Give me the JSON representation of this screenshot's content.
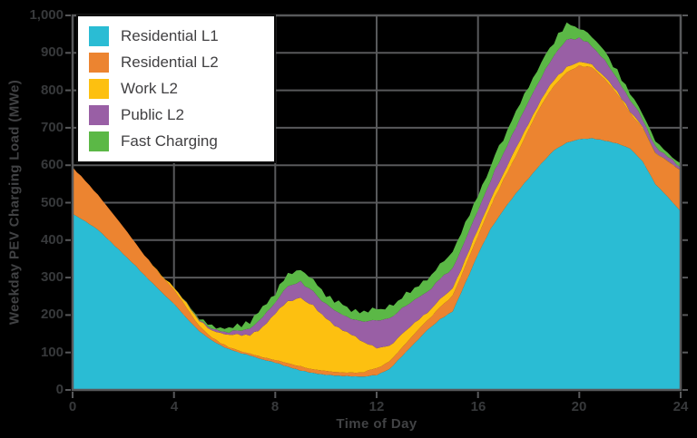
{
  "axes": {
    "y_label": "Weekday PEV Charging Load (MWe)",
    "x_label": "Time of Day",
    "y_tick_labels": [
      "0",
      "100",
      "200",
      "300",
      "400",
      "500",
      "600",
      "700",
      "800",
      "900",
      "1,000"
    ],
    "x_tick_labels": [
      "0",
      "4",
      "8",
      "12",
      "16",
      "20",
      "24"
    ],
    "x_tick_values": [
      0,
      4,
      8,
      12,
      16,
      20,
      24
    ]
  },
  "colors": {
    "background": "#000000",
    "grid": "#58595B",
    "tick_text": "#37393B",
    "axis_title_text": "#414244",
    "legend_background": "#FFFFFF",
    "legend_border": "#0A0A0A",
    "legend_text": "#414042"
  },
  "chart_data": {
    "type": "area",
    "stacked": true,
    "title": "",
    "xlabel": "Time of Day",
    "ylabel": "Weekday PEV Charging Load (MWe)",
    "xlim": [
      0,
      24
    ],
    "ylim": [
      0,
      1000
    ],
    "grid": true,
    "legend_position": "top-left",
    "x_hours_step": 0.5,
    "x_start_hour": 0,
    "series": [
      {
        "name": "Residential L1",
        "color": "#2ABCD4",
        "jitter": 1,
        "values": [
          470,
          450,
          428,
          396,
          363,
          330,
          295,
          262,
          230,
          192,
          157,
          132,
          114,
          101,
          92,
          81,
          73,
          62,
          52,
          45,
          40,
          38,
          36,
          36,
          40,
          55,
          90,
          125,
          160,
          188,
          210,
          285,
          363,
          430,
          480,
          525,
          565,
          605,
          640,
          660,
          670,
          672,
          666,
          658,
          645,
          610,
          550,
          515,
          477
        ]
      },
      {
        "name": "Residential L2",
        "color": "#EC8430",
        "jitter": 2,
        "values": [
          125,
          108,
          92,
          82,
          73,
          60,
          51,
          43,
          38,
          28,
          14,
          8,
          6,
          5,
          5,
          6,
          7,
          10,
          11,
          10,
          10,
          9,
          9,
          12,
          18,
          21,
          22,
          25,
          26,
          32,
          42,
          45,
          49,
          60,
          80,
          100,
          130,
          157,
          172,
          188,
          196,
          190,
          164,
          132,
          95,
          88,
          82,
          95,
          109
        ]
      },
      {
        "name": "Work L2",
        "color": "#FDC010",
        "jitter": 3,
        "values": [
          0,
          0,
          0,
          0,
          0,
          0,
          0,
          2,
          6,
          12,
          14,
          18,
          30,
          42,
          49,
          79,
          126,
          166,
          182,
          170,
          140,
          118,
          103,
          80,
          54,
          42,
          36,
          28,
          22,
          20,
          20,
          18,
          19,
          18,
          18,
          20,
          17,
          16,
          16,
          14,
          10,
          8,
          6,
          5,
          4,
          3,
          2,
          1,
          1
        ]
      },
      {
        "name": "Public L2",
        "color": "#995FA5",
        "jitter": 3.5,
        "values": [
          0,
          0,
          0,
          0,
          0,
          0,
          0,
          0,
          0,
          1,
          2,
          4,
          7,
          10,
          18,
          26,
          30,
          40,
          43,
          37,
          38,
          40,
          42,
          57,
          74,
          74,
          67,
          62,
          56,
          55,
          53,
          52,
          49,
          52,
          54,
          55,
          60,
          60,
          64,
          73,
          64,
          50,
          44,
          35,
          31,
          22,
          16,
          12,
          7
        ]
      },
      {
        "name": "Fast Charging",
        "color": "#5BB846",
        "jitter": 7,
        "values": [
          0,
          0,
          0,
          0,
          0,
          0,
          0,
          0,
          0,
          1,
          4,
          6,
          9,
          14,
          18,
          24,
          24,
          32,
          34,
          30,
          24,
          27,
          25,
          27,
          30,
          30,
          31,
          30,
          31,
          35,
          47,
          45,
          41,
          40,
          40,
          40,
          40,
          40,
          38,
          40,
          28,
          25,
          25,
          20,
          17,
          15,
          12,
          10,
          11
        ]
      }
    ]
  },
  "legend": {
    "items": [
      {
        "label": "Residential L1"
      },
      {
        "label": "Residential L2"
      },
      {
        "label": "Work L2"
      },
      {
        "label": "Public L2"
      },
      {
        "label": "Fast Charging"
      }
    ]
  }
}
